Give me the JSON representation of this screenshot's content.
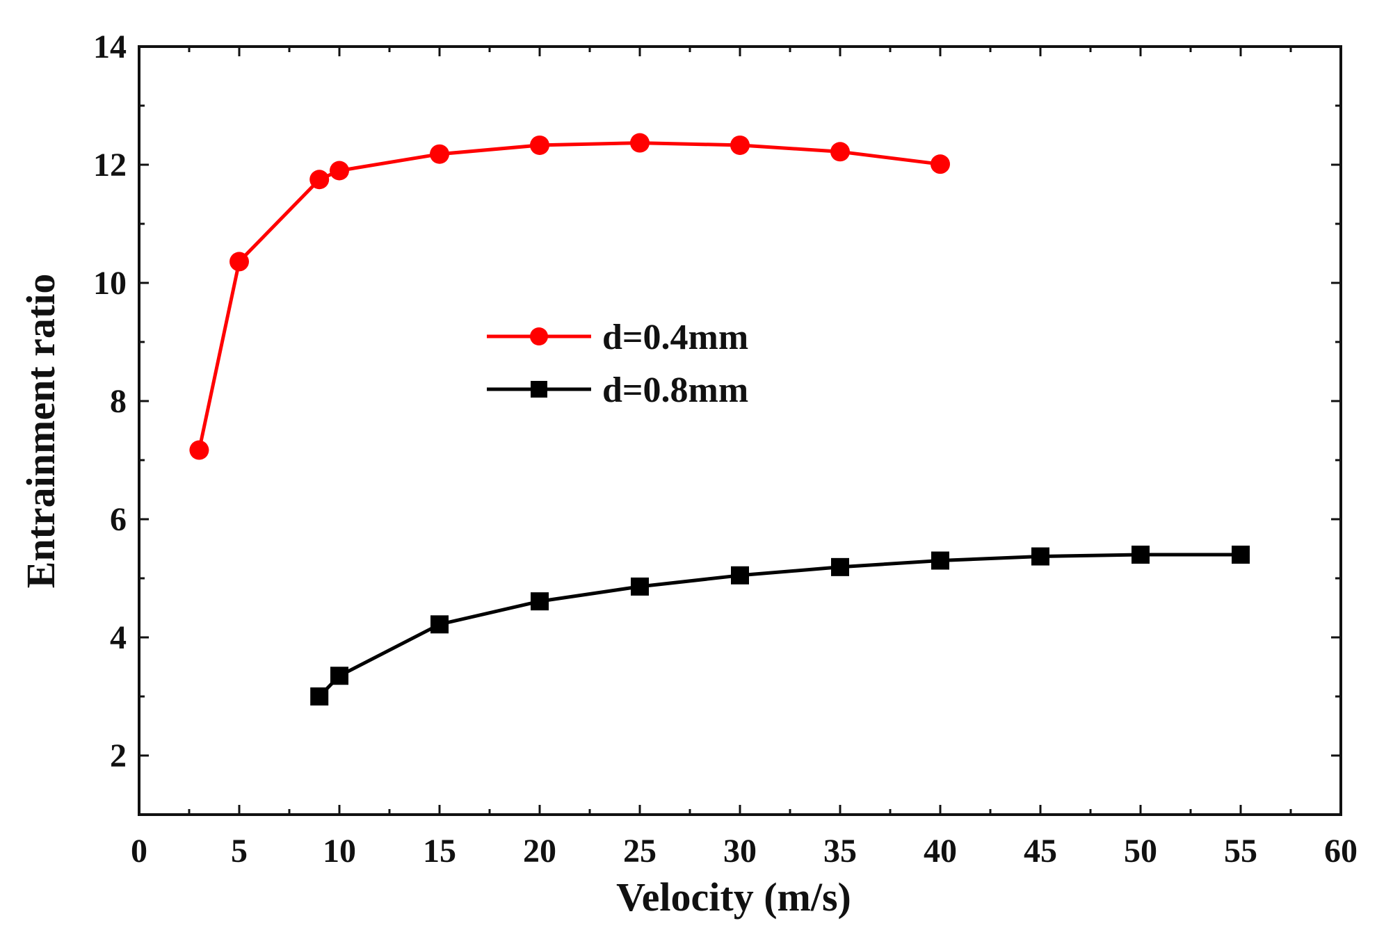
{
  "chart_data": {
    "type": "line",
    "title": "",
    "xlabel": "Velocity (m/s)",
    "ylabel": "Entrainment ratio",
    "xlim": [
      0,
      60
    ],
    "ylim": [
      1,
      14
    ],
    "xticks": [
      0,
      5,
      10,
      15,
      20,
      25,
      30,
      35,
      40,
      45,
      50,
      55,
      60
    ],
    "yticks": [
      2,
      4,
      6,
      8,
      10,
      12,
      14
    ],
    "grid": false,
    "legend_position": "center",
    "series": [
      {
        "name": "d=0.4mm",
        "color": "#ff0000",
        "marker": "circle",
        "x": [
          3,
          5,
          9,
          10,
          15,
          20,
          25,
          30,
          35,
          40
        ],
        "y": [
          7.17,
          10.36,
          11.75,
          11.9,
          12.18,
          12.33,
          12.37,
          12.33,
          12.22,
          12.01
        ]
      },
      {
        "name": "d=0.8mm",
        "color": "#000000",
        "marker": "square",
        "x": [
          9,
          10,
          15,
          20,
          25,
          30,
          35,
          40,
          45,
          50,
          55
        ],
        "y": [
          3.0,
          3.35,
          4.22,
          4.61,
          4.86,
          5.05,
          5.19,
          5.3,
          5.37,
          5.4,
          5.4
        ]
      }
    ]
  }
}
